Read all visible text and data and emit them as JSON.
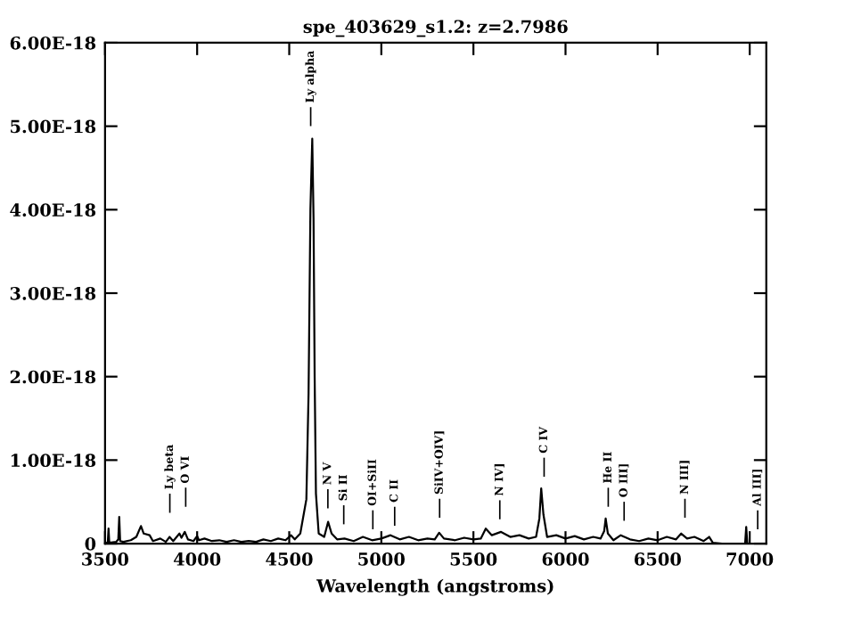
{
  "chart_data": {
    "type": "line",
    "title": "spe_403629_s1.2: z=2.7986",
    "xlabel": "Wavelength (angstroms)",
    "xlim": [
      3500,
      7090
    ],
    "xticks": [
      3500,
      4000,
      4500,
      5000,
      5500,
      6000,
      6500,
      7000
    ],
    "ylim": [
      0,
      6e-18
    ],
    "yticks": [
      0,
      {
        "value": 1e-18,
        "label": "1.00E-18"
      },
      {
        "value": 2e-18,
        "label": "2.00E-18"
      },
      {
        "value": 3e-18,
        "label": "3.00E-18"
      },
      {
        "value": 4e-18,
        "label": "4.00E-18"
      },
      {
        "value": 5e-18,
        "label": "5.00E-18"
      },
      {
        "value": 6e-18,
        "label": "6.00E-18"
      }
    ],
    "grid": false,
    "legend": false,
    "marker": "none",
    "line_style": "solid",
    "series": [
      {
        "color": "#000000",
        "x": [
          3505,
          3515,
          3519,
          3523,
          3560,
          3572,
          3577,
          3582,
          3600,
          3640,
          3670,
          3695,
          3710,
          3742,
          3760,
          3800,
          3830,
          3850,
          3870,
          3904,
          3915,
          3933,
          3950,
          3980,
          4000,
          4010,
          4040,
          4080,
          4120,
          4160,
          4200,
          4240,
          4280,
          4320,
          4360,
          4400,
          4440,
          4480,
          4510,
          4530,
          4560,
          4593,
          4605,
          4615,
          4625,
          4632,
          4638,
          4645,
          4660,
          4690,
          4711,
          4730,
          4760,
          4800,
          4850,
          4900,
          4950,
          5000,
          5050,
          5100,
          5150,
          5200,
          5250,
          5290,
          5314,
          5340,
          5400,
          5450,
          5500,
          5540,
          5567,
          5600,
          5650,
          5700,
          5750,
          5800,
          5840,
          5858,
          5868,
          5880,
          5900,
          5950,
          6000,
          6050,
          6100,
          6150,
          6190,
          6210,
          6218,
          6230,
          6260,
          6300,
          6350,
          6400,
          6450,
          6500,
          6550,
          6600,
          6628,
          6660,
          6700,
          6750,
          6780,
          6800,
          6850,
          6900,
          6950,
          6975,
          6981,
          6987,
          7000
        ],
        "values": [
          0.0,
          2e-20,
          1.8e-19,
          1e-20,
          2e-20,
          5e-20,
          3.2e-19,
          3e-20,
          2e-20,
          4e-20,
          8e-20,
          2.1e-19,
          1.2e-19,
          1e-19,
          3e-20,
          6e-20,
          2e-20,
          8e-20,
          3e-20,
          1.2e-19,
          7e-20,
          1.4e-19,
          5e-20,
          3e-20,
          9e-20,
          4e-20,
          6e-20,
          3e-20,
          4e-20,
          2e-20,
          4e-20,
          2e-20,
          3e-20,
          2e-20,
          5e-20,
          3e-20,
          6e-20,
          4e-20,
          1e-19,
          5e-20,
          1.2e-19,
          5.3e-19,
          1.8e-18,
          4e-18,
          4.85e-18,
          3.9e-18,
          2e-18,
          6e-19,
          1.2e-19,
          8e-20,
          2.6e-19,
          1.2e-19,
          5e-20,
          6e-20,
          3e-20,
          8e-20,
          4e-20,
          6e-20,
          1e-19,
          5e-20,
          8e-20,
          4e-20,
          6e-20,
          5e-20,
          1.3e-19,
          6e-20,
          4e-20,
          7e-20,
          5e-20,
          6e-20,
          1.8e-19,
          1e-19,
          1.4e-19,
          8e-20,
          1e-19,
          6e-20,
          8e-20,
          3e-19,
          6.6e-19,
          3.5e-19,
          8e-20,
          1e-19,
          6e-20,
          9e-20,
          5e-20,
          8e-20,
          6e-20,
          1.5e-19,
          3e-19,
          1.2e-19,
          4e-20,
          1e-19,
          5e-20,
          3e-20,
          6e-20,
          4e-20,
          8e-20,
          5e-20,
          1.2e-19,
          6e-20,
          8e-20,
          3e-20,
          8e-20,
          1e-20,
          0.0,
          0.0,
          0.0,
          0.0,
          2e-19,
          0.0,
          0.0
        ]
      }
    ],
    "annotations": [
      "Ly beta",
      "O VI",
      "Ly alpha",
      "N V",
      "Si II",
      "OI+SiII",
      "C II",
      "SiIV+OIV]",
      "N IV]",
      "C IV",
      "He II",
      "O III]",
      "N III]",
      "Al III]"
    ]
  }
}
